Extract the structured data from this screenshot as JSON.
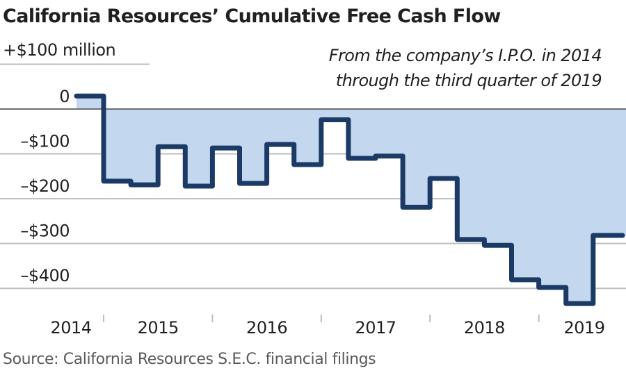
{
  "chart_data": {
    "type": "area",
    "subtype": "step",
    "title": "California Resources’ Cumulative Free Cash Flow",
    "subtitle": "From the company’s I.P.O. in 2014 through the third quarter of 2019",
    "ylabel": "+$100 million",
    "xlabel": "",
    "source": "Source: California Resources S.E.C. financial filings",
    "units": "millions of dollars",
    "ylim": [
      -450,
      100
    ],
    "yticks": [
      {
        "value": 0,
        "label": "0"
      },
      {
        "value": -100,
        "label": "–$100"
      },
      {
        "value": -200,
        "label": "–$200"
      },
      {
        "value": -300,
        "label": "–$300"
      },
      {
        "value": -400,
        "label": "–$400"
      }
    ],
    "xticks": [
      {
        "value": 2014,
        "label": "2014"
      },
      {
        "value": 2015,
        "label": "2015"
      },
      {
        "value": 2016,
        "label": "2016"
      },
      {
        "value": 2017,
        "label": "2017"
      },
      {
        "value": 2018,
        "label": "2018"
      },
      {
        "value": 2019,
        "label": "2019"
      }
    ],
    "grid": true,
    "colors": {
      "line": "#1b3a66",
      "fill": "#c3d8ee",
      "zero_line": "#6d6e71",
      "grid": "#bcbec0"
    },
    "series": [
      {
        "name": "Cumulative free cash flow",
        "points": [
          {
            "quarter": "Q4 2014",
            "value": 29
          },
          {
            "quarter": "Q1 2015",
            "value": -161
          },
          {
            "quarter": "Q2 2015",
            "value": -169
          },
          {
            "quarter": "Q3 2015",
            "value": -84
          },
          {
            "quarter": "Q4 2015",
            "value": -172
          },
          {
            "quarter": "Q1 2016",
            "value": -87
          },
          {
            "quarter": "Q2 2016",
            "value": -166
          },
          {
            "quarter": "Q3 2016",
            "value": -79
          },
          {
            "quarter": "Q4 2016",
            "value": -124
          },
          {
            "quarter": "Q1 2017",
            "value": -24
          },
          {
            "quarter": "Q2 2017",
            "value": -110
          },
          {
            "quarter": "Q3 2017",
            "value": -105
          },
          {
            "quarter": "Q4 2017",
            "value": -219
          },
          {
            "quarter": "Q1 2018",
            "value": -155
          },
          {
            "quarter": "Q2 2018",
            "value": -291
          },
          {
            "quarter": "Q3 2018",
            "value": -304
          },
          {
            "quarter": "Q4 2018",
            "value": -381
          },
          {
            "quarter": "Q1 2019",
            "value": -398
          },
          {
            "quarter": "Q2 2019",
            "value": -434
          },
          {
            "quarter": "Q3 2019",
            "value": -282
          }
        ]
      }
    ]
  }
}
